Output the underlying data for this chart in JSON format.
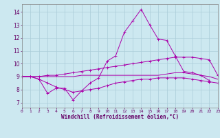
{
  "xlabel": "Windchill (Refroidissement éolien,°C)",
  "bg_color": "#cce8f0",
  "grid_color": "#aaccd8",
  "line_color": "#aa00aa",
  "x_ticks": [
    0,
    1,
    2,
    3,
    4,
    5,
    6,
    7,
    8,
    9,
    10,
    11,
    12,
    13,
    14,
    15,
    16,
    17,
    18,
    19,
    20,
    21,
    22,
    23
  ],
  "y_ticks": [
    7,
    8,
    9,
    10,
    11,
    12,
    13,
    14
  ],
  "ylim": [
    6.6,
    14.6
  ],
  "xlim": [
    0,
    23
  ],
  "series1_x": [
    0,
    1,
    2,
    3,
    4,
    5,
    6,
    7,
    8,
    9,
    10,
    11,
    12,
    13,
    14,
    15,
    16,
    17,
    18,
    19,
    20,
    21,
    22
  ],
  "series1_y": [
    9.0,
    9.0,
    8.8,
    7.7,
    8.1,
    8.1,
    7.2,
    7.9,
    8.5,
    8.9,
    10.2,
    10.6,
    12.4,
    13.3,
    14.2,
    13.0,
    11.9,
    11.8,
    10.6,
    9.4,
    9.3,
    9.1,
    8.7
  ],
  "series2": [
    9.0,
    9.0,
    9.0,
    9.1,
    9.1,
    9.2,
    9.3,
    9.4,
    9.5,
    9.6,
    9.7,
    9.8,
    9.9,
    10.0,
    10.1,
    10.2,
    10.3,
    10.4,
    10.5,
    10.5,
    10.5,
    10.4,
    10.3,
    9.1
  ],
  "series3": [
    9.0,
    9.0,
    9.0,
    9.0,
    9.0,
    9.0,
    9.0,
    9.1,
    9.1,
    9.1,
    9.1,
    9.1,
    9.1,
    9.1,
    9.1,
    9.1,
    9.1,
    9.2,
    9.3,
    9.3,
    9.2,
    9.1,
    9.0,
    8.8
  ],
  "series4": [
    9.0,
    9.0,
    8.8,
    8.5,
    8.2,
    8.0,
    7.8,
    7.9,
    8.0,
    8.1,
    8.3,
    8.5,
    8.6,
    8.7,
    8.8,
    8.8,
    8.9,
    8.9,
    8.9,
    8.9,
    8.8,
    8.7,
    8.6,
    8.5
  ]
}
